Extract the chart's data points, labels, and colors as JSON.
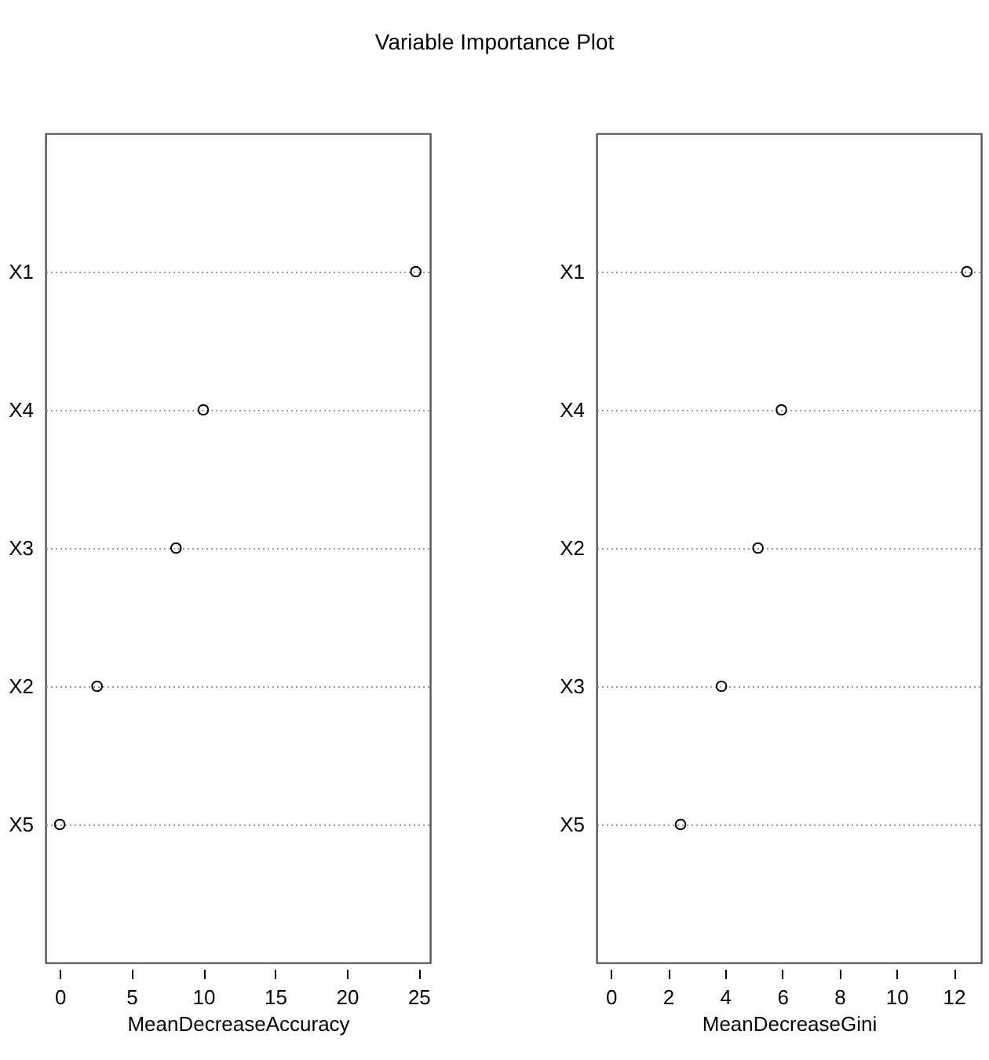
{
  "chart_data": [
    {
      "type": "scatter",
      "orientation": "horizontal",
      "title": "Variable Importance Plot",
      "categories": [
        "X1",
        "X4",
        "X3",
        "X2",
        "X5"
      ],
      "values": [
        24.8,
        10.0,
        8.1,
        2.6,
        0.0
      ],
      "color": "#000000",
      "marker": "circle",
      "xlim": [
        -0.99,
        25.8
      ],
      "xticks": [
        0,
        5,
        10,
        15,
        20,
        25
      ],
      "xlabel": "MeanDecreaseAccuracy",
      "grid": "y"
    },
    {
      "type": "scatter",
      "orientation": "horizontal",
      "categories": [
        "X1",
        "X4",
        "X2",
        "X3",
        "X5"
      ],
      "values": [
        12.46,
        5.97,
        5.15,
        3.87,
        2.44
      ],
      "color": "#000000",
      "marker": "circle",
      "xlim": [
        -0.5,
        12.96
      ],
      "xticks": [
        0,
        2,
        4,
        6,
        8,
        10,
        12
      ],
      "xlabel": "MeanDecreaseGini",
      "grid": "y"
    }
  ]
}
